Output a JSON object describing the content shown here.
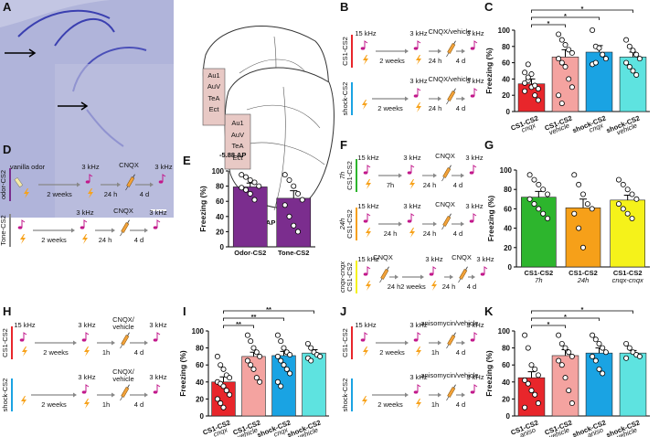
{
  "panel_labels": [
    "A",
    "B",
    "C",
    "D",
    "E",
    "F",
    "G",
    "H",
    "I",
    "J",
    "K"
  ],
  "atlas": {
    "front_labels": [
      "Au1",
      "AuV",
      "TeA",
      "Ect"
    ],
    "back_labels": [
      "Au1",
      "AuV",
      "TeA",
      "Ect"
    ],
    "front_ap": "-5.88 AP",
    "back_ap": "-6.84 AP"
  },
  "protocols": {
    "B": [
      {
        "name": "CS1-CS2",
        "color": "#e8262b",
        "texts": [
          "15 kHz",
          "2 weeks",
          "3 kHz",
          "24 h",
          "CNQX/vehicle",
          "4 d",
          "3 kHz"
        ]
      },
      {
        "name": "shock-CS2",
        "color": "#1aa3e3",
        "texts": [
          "2 weeks",
          "3 kHz",
          "24 h",
          "CNQX/vehicle",
          "4 d",
          "3 kHz"
        ]
      }
    ],
    "D": [
      {
        "name": "odor-CS2",
        "color": "#7b2d8e",
        "texts": [
          "vanilla odor",
          "2 weeks",
          "3 kHz",
          "24 h",
          "CNQX",
          "4 d",
          "3 kHz"
        ]
      },
      {
        "name": "Tone-CS2",
        "color": "#888888",
        "texts": [
          "2 weeks",
          "3 kHz",
          "24 h",
          "CNQX",
          "4 d",
          "3 kHz"
        ]
      }
    ],
    "F": [
      {
        "name": "CS1-CS2",
        "sub": "7h",
        "color": "#2db52d",
        "texts": [
          "15 kHz",
          "7h",
          "3 kHz",
          "24 h",
          "CNQX",
          "4 d",
          "3 kHz"
        ]
      },
      {
        "name": "CS1-CS2",
        "sub": "24h",
        "color": "#f6a019",
        "texts": [
          "15 kHz",
          "24 h",
          "3 kHz",
          "24 h",
          "CNQX",
          "4 d",
          "3 kHz"
        ]
      },
      {
        "name": "CS1-CS2",
        "sub": "cnqx-cnqx",
        "color": "#f5f21a",
        "texts": [
          "15 kHz",
          "CNQX",
          "24 h",
          "2 weeks",
          "3 kHz",
          "24 h",
          "CNQX",
          "4 d",
          "3 kHz"
        ]
      }
    ],
    "H": [
      {
        "name": "CS1-CS2",
        "color": "#e8262b",
        "texts": [
          "15 kHz",
          "2 weeks",
          "3 kHz",
          "1h",
          "CNQX/\nvehicle",
          "4 d",
          "3 kHz"
        ]
      },
      {
        "name": "shock-CS2",
        "color": "#1aa3e3",
        "texts": [
          "2 weeks",
          "3 kHz",
          "1h",
          "CNQX/\nvehicle",
          "4 d",
          "3 kHz"
        ]
      }
    ],
    "J": [
      {
        "name": "CS1-CS2",
        "color": "#e8262b",
        "texts": [
          "15 kHz",
          "2 weeks",
          "3 kHz",
          "1h",
          "anisomycin/vehicle",
          "4 d",
          "3 kHz"
        ]
      },
      {
        "name": "shock-CS2",
        "color": "#1aa3e3",
        "texts": [
          "2 weeks",
          "3 kHz",
          "1h",
          "anisomycin/vehicle",
          "4 d",
          "3 kHz"
        ]
      }
    ]
  },
  "chart_data": [
    {
      "type": "bar",
      "ylabel": "Freezing (%)",
      "categories": [
        "CS1-CS2",
        "CS1-CS2",
        "shock-CS2",
        "shock-CS2"
      ],
      "sublabels": [
        "cnqx",
        "vehicle",
        "cnqx",
        "vehicle"
      ],
      "values": [
        34,
        67,
        73,
        67
      ],
      "errors": [
        6,
        9,
        8,
        6
      ],
      "colors": [
        "#e8262b",
        "#f4a3a0",
        "#1aa3e3",
        "#5ee3e0"
      ],
      "points": [
        [
          25,
          38,
          30,
          20,
          14,
          35,
          42,
          46,
          32,
          28,
          48,
          58
        ],
        [
          95,
          88,
          82,
          76,
          72,
          65,
          60,
          55,
          40,
          30,
          20,
          10
        ],
        [
          100,
          80,
          78,
          70,
          65,
          58,
          60
        ],
        [
          88,
          80,
          75,
          70,
          65,
          60,
          55,
          50,
          45
        ]
      ],
      "significance": [
        {
          "from": 0,
          "to": 1,
          "label": "*"
        },
        {
          "from": 0,
          "to": 2,
          "label": "*"
        },
        {
          "from": 0,
          "to": 3,
          "label": "*"
        }
      ],
      "ylim": [
        0,
        100
      ],
      "yticks": [
        0,
        20,
        40,
        60,
        80,
        100
      ]
    },
    {
      "type": "bar",
      "ylabel": "Freezing (%)",
      "categories": [
        "Odor-CS2",
        "Tone-CS2"
      ],
      "values": [
        79,
        64
      ],
      "errors": [
        5,
        10
      ],
      "colors": [
        "#7b2d8e",
        "#7b2d8e"
      ],
      "points": [
        [
          95,
          92,
          88,
          85,
          80,
          78,
          75,
          70,
          62
        ],
        [
          95,
          88,
          80,
          70,
          62,
          55,
          40,
          28,
          20
        ]
      ],
      "significance": [],
      "ylim": [
        0,
        100
      ],
      "yticks": [
        0,
        20,
        40,
        60,
        80,
        100
      ]
    },
    {
      "type": "bar",
      "ylabel": "Freezing (%)",
      "categories": [
        "CS1-CS2",
        "CS1-CS2",
        "CS1-CS2"
      ],
      "sublabels": [
        "7h",
        "24h",
        "cnqx-cnqx"
      ],
      "values": [
        72,
        61,
        69
      ],
      "errors": [
        6,
        9,
        5
      ],
      "colors": [
        "#2db52d",
        "#f6a019",
        "#f5f21a"
      ],
      "points": [
        [
          95,
          90,
          85,
          80,
          75,
          70,
          65,
          60,
          55,
          50
        ],
        [
          95,
          85,
          75,
          65,
          60,
          55,
          40,
          20
        ],
        [
          90,
          85,
          80,
          75,
          70,
          65,
          60,
          55,
          50
        ]
      ],
      "significance": [],
      "ylim": [
        0,
        100
      ],
      "yticks": [
        0,
        20,
        40,
        60,
        80,
        100
      ]
    },
    {
      "type": "bar",
      "ylabel": "Freezing (%)",
      "categories": [
        "CS1-CS2",
        "CS1-CS2",
        "shock-CS2",
        "shock-CS2"
      ],
      "sublabels": [
        "cnqx",
        "vehicle",
        "cnqx",
        "vehicle"
      ],
      "values": [
        40,
        70,
        71,
        74
      ],
      "errors": [
        6,
        5,
        5,
        4
      ],
      "colors": [
        "#e8262b",
        "#f4a3a0",
        "#1aa3e3",
        "#5ee3e0"
      ],
      "points": [
        [
          70,
          60,
          55,
          48,
          45,
          40,
          38,
          35,
          30,
          25,
          20,
          15,
          10
        ],
        [
          95,
          88,
          80,
          75,
          70,
          65,
          60,
          55,
          45,
          40
        ],
        [
          95,
          88,
          80,
          75,
          72,
          70,
          65,
          60,
          55,
          50,
          40,
          35
        ],
        [
          85,
          80,
          75,
          72,
          70,
          68,
          65
        ]
      ],
      "significance": [
        {
          "from": 0,
          "to": 1,
          "label": "**"
        },
        {
          "from": 0,
          "to": 2,
          "label": "**"
        },
        {
          "from": 0,
          "to": 3,
          "label": "**"
        }
      ],
      "ylim": [
        0,
        100
      ],
      "yticks": [
        0,
        20,
        40,
        60,
        80,
        100
      ]
    },
    {
      "type": "bar",
      "ylabel": "Freezing (%)",
      "categories": [
        "CS1-CS2",
        "CS1-CS2",
        "shock-CS2",
        "shock-CS2"
      ],
      "sublabels": [
        "aniso",
        "vehicle",
        "aniso",
        "vehicle"
      ],
      "values": [
        45,
        71,
        74,
        74
      ],
      "errors": [
        7,
        7,
        6,
        3
      ],
      "colors": [
        "#e8262b",
        "#f4a3a0",
        "#1aa3e3",
        "#5ee3e0"
      ],
      "points": [
        [
          95,
          80,
          60,
          55,
          48,
          42,
          38,
          30,
          25,
          15,
          10
        ],
        [
          95,
          85,
          80,
          75,
          70,
          65,
          60,
          45,
          30,
          15
        ],
        [
          95,
          90,
          85,
          80,
          75,
          70,
          65,
          55,
          50
        ],
        [
          85,
          80,
          75,
          72,
          70,
          68
        ]
      ],
      "significance": [
        {
          "from": 0,
          "to": 1,
          "label": "*"
        },
        {
          "from": 0,
          "to": 2,
          "label": "*"
        },
        {
          "from": 0,
          "to": 3,
          "label": "*"
        }
      ],
      "ylim": [
        0,
        100
      ],
      "yticks": [
        0,
        20,
        40,
        60,
        80,
        100
      ]
    }
  ]
}
